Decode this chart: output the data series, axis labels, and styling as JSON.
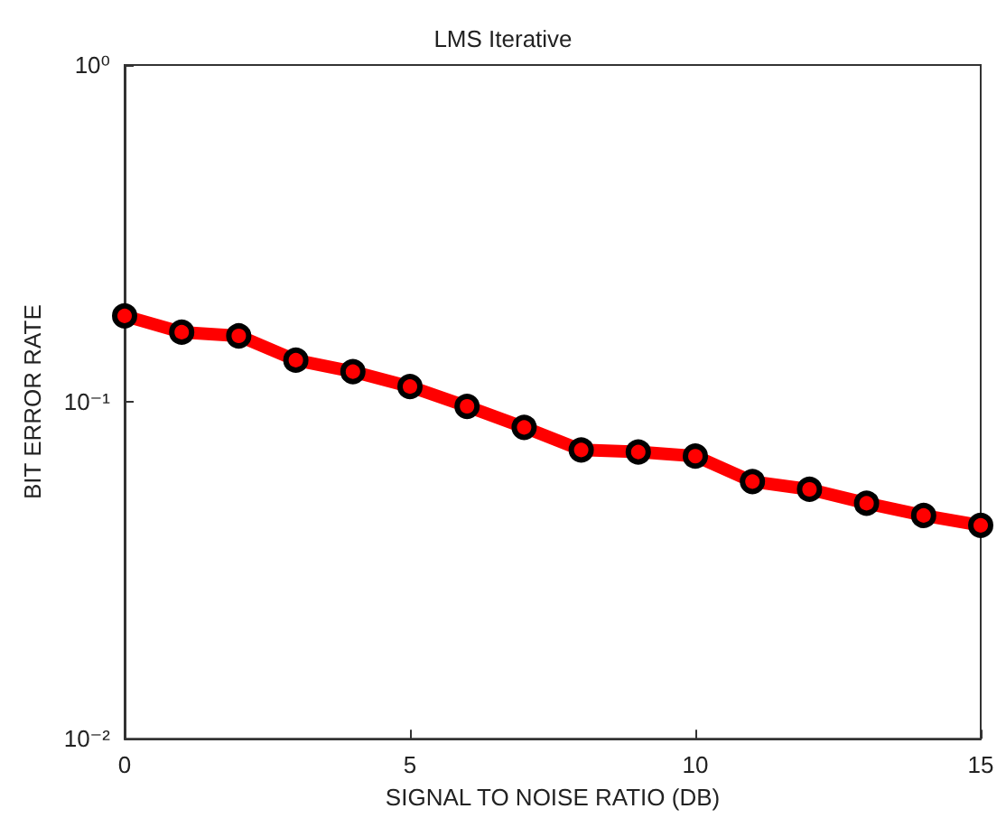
{
  "chart_data": {
    "type": "line",
    "title": "LMS Iterative",
    "xlabel": "SIGNAL TO NOISE RATIO (DB)",
    "ylabel": "BIT ERROR RATE",
    "x": [
      0,
      1,
      2,
      3,
      4,
      5,
      6,
      7,
      8,
      9,
      10,
      11,
      12,
      13,
      14,
      15
    ],
    "series": [
      {
        "color": "#ff0000",
        "values": [
          0.18,
          0.161,
          0.157,
          0.133,
          0.123,
          0.111,
          0.097,
          0.084,
          0.072,
          0.071,
          0.069,
          0.058,
          0.055,
          0.05,
          0.046,
          0.043
        ]
      }
    ],
    "xlim": [
      0,
      15
    ],
    "xticks": [
      0,
      5,
      10,
      15
    ],
    "ylim": [
      0.01,
      1
    ],
    "yticks": [
      {
        "value": 0.01,
        "label": "10⁻²"
      },
      {
        "value": 0.1,
        "label": "10⁻¹"
      },
      {
        "value": 1,
        "label": "10⁰"
      }
    ],
    "log": "y",
    "marker": "circle",
    "line_style": "solid"
  }
}
